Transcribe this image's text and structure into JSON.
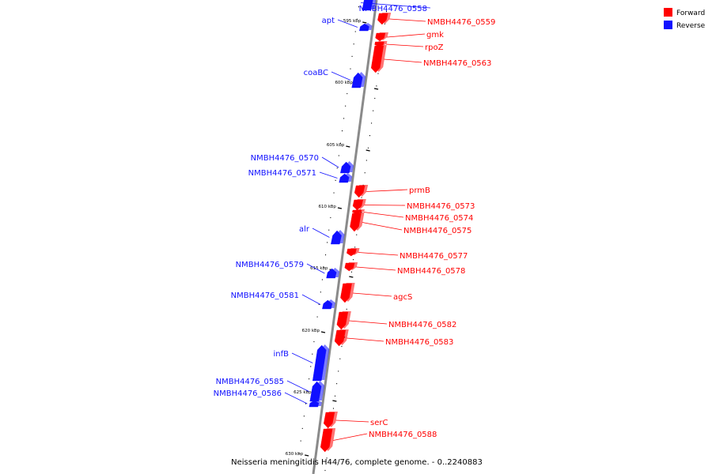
{
  "colors": {
    "forward": "#ff0000",
    "reverse": "#1010ff",
    "backbone": "#8a8a8a"
  },
  "legend": {
    "forward_label": "Forward",
    "reverse_label": "Reverse"
  },
  "caption": "Neisseria meningitidis H44/76, complete genome. - 0..2240883",
  "ticks": [
    {
      "kbp": 595,
      "label": "595 kbp"
    },
    {
      "kbp": 600,
      "label": "600 kbp"
    },
    {
      "kbp": 605,
      "label": "605 kbp"
    },
    {
      "kbp": 610,
      "label": "610 kbp"
    },
    {
      "kbp": 615,
      "label": "615 kbp"
    },
    {
      "kbp": 620,
      "label": "620 kbp"
    },
    {
      "kbp": 625,
      "label": "625 kbp"
    },
    {
      "kbp": 630,
      "label": "630 kbp"
    }
  ],
  "genes": [
    {
      "name": "NMBH4476_0558",
      "strand": "reverse"
    },
    {
      "name": "NMBH4476_0559",
      "strand": "forward"
    },
    {
      "name": "apt",
      "strand": "reverse"
    },
    {
      "name": "gmk",
      "strand": "forward"
    },
    {
      "name": "rpoZ",
      "strand": "forward"
    },
    {
      "name": "NMBH4476_0563",
      "strand": "forward"
    },
    {
      "name": "coaBC",
      "strand": "reverse"
    },
    {
      "name": "NMBH4476_0570",
      "strand": "reverse"
    },
    {
      "name": "NMBH4476_0571",
      "strand": "reverse"
    },
    {
      "name": "prmB",
      "strand": "forward"
    },
    {
      "name": "NMBH4476_0573",
      "strand": "forward"
    },
    {
      "name": "NMBH4476_0574",
      "strand": "forward"
    },
    {
      "name": "NMBH4476_0575",
      "strand": "forward"
    },
    {
      "name": "alr",
      "strand": "reverse"
    },
    {
      "name": "NMBH4476_0577",
      "strand": "forward"
    },
    {
      "name": "NMBH4476_0578",
      "strand": "forward"
    },
    {
      "name": "NMBH4476_0579",
      "strand": "reverse"
    },
    {
      "name": "agcS",
      "strand": "forward"
    },
    {
      "name": "NMBH4476_0581",
      "strand": "reverse"
    },
    {
      "name": "NMBH4476_0582",
      "strand": "forward"
    },
    {
      "name": "NMBH4476_0583",
      "strand": "forward"
    },
    {
      "name": "infB",
      "strand": "reverse"
    },
    {
      "name": "NMBH4476_0585",
      "strand": "reverse"
    },
    {
      "name": "NMBH4476_0586",
      "strand": "reverse"
    },
    {
      "name": "serC",
      "strand": "forward"
    },
    {
      "name": "NMBH4476_0588",
      "strand": "forward"
    }
  ]
}
